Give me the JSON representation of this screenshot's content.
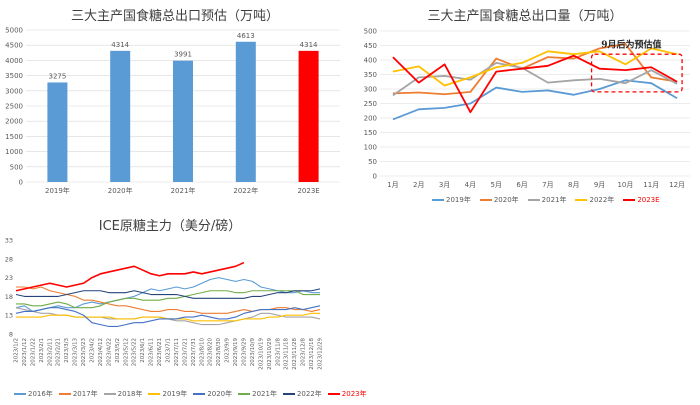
{
  "chart_data": [
    {
      "type": "bar",
      "title": "三大主产国食糖总出口预估（万吨）",
      "categories": [
        "2019年",
        "2020年",
        "2021年",
        "2022年",
        "2023E"
      ],
      "values": [
        3275,
        4314,
        3991,
        4613,
        4314
      ],
      "data_labels": [
        "3275",
        "4314",
        "3991",
        "4613",
        "4314"
      ],
      "ylim": [
        0,
        5000
      ],
      "yticks": [
        "0",
        "500",
        "1000",
        "1500",
        "2000",
        "2500",
        "3000",
        "3500",
        "4000",
        "4500",
        "5000"
      ],
      "colors": [
        "#5b9bd5",
        "#5b9bd5",
        "#5b9bd5",
        "#5b9bd5",
        "#ff0000"
      ],
      "grid": true
    },
    {
      "type": "line",
      "title": "三大主产国食糖总出口量（万吨）",
      "categories": [
        "1月",
        "2月",
        "3月",
        "4月",
        "5月",
        "6月",
        "7月",
        "8月",
        "9月",
        "10月",
        "11月",
        "12月"
      ],
      "ylim": [
        0,
        500
      ],
      "yticks": [
        "0",
        "50",
        "100",
        "150",
        "200",
        "250",
        "300",
        "350",
        "400",
        "450",
        "500"
      ],
      "series": [
        {
          "name": "2019年",
          "color": "#5b9bd5",
          "values": [
            195,
            230,
            235,
            250,
            305,
            290,
            295,
            280,
            300,
            330,
            320,
            268
          ]
        },
        {
          "name": "2020年",
          "color": "#ed7d31",
          "values": [
            285,
            288,
            282,
            290,
            405,
            370,
            410,
            405,
            440,
            455,
            340,
            325
          ]
        },
        {
          "name": "2021年",
          "color": "#a5a5a5",
          "values": [
            278,
            340,
            345,
            332,
            390,
            373,
            322,
            330,
            335,
            320,
            365,
            318
          ]
        },
        {
          "name": "2022年",
          "color": "#ffc000",
          "values": [
            360,
            378,
            312,
            340,
            375,
            390,
            430,
            420,
            430,
            385,
            440,
            420
          ]
        },
        {
          "name": "2023E",
          "color": "#ff0000",
          "values": [
            410,
            322,
            385,
            220,
            360,
            370,
            380,
            415,
            370,
            365,
            375,
            325
          ]
        }
      ],
      "annotation": "9月后为预估值",
      "grid": true,
      "legend": "bottom"
    },
    {
      "type": "line",
      "title": "ICE原糖主力（美分/磅）",
      "ylim": [
        8,
        33
      ],
      "yticks": [
        "8",
        "13",
        "18",
        "23",
        "28",
        "33"
      ],
      "xticks": [
        "2023/1/2",
        "2023/1/12",
        "2023/1/22",
        "2023/2/1",
        "2023/2/11",
        "2023/2/21",
        "2023/3/3",
        "2023/3/13",
        "2023/3/23",
        "2023/4/2",
        "2023/4/12",
        "2023/4/22",
        "2023/5/2",
        "2023/5/12",
        "2023/5/22",
        "2023/6/1",
        "2023/6/11",
        "2023/6/21",
        "2023/7/1",
        "2023/7/11",
        "2023/7/21",
        "2023/7/31",
        "2023/8/10",
        "2023/8/20",
        "2023/8/30",
        "2023/9/9",
        "2023/9/19",
        "2023/9/29",
        "2023/10/9",
        "2023/10/19",
        "2023/10/29",
        "2023/11/8",
        "2023/11/18",
        "2023/11/28",
        "2023/12/8",
        "2023/12/18",
        "2023/12/29"
      ],
      "series": [
        {
          "name": "2016年",
          "color": "#5b9bd5",
          "values": [
            15,
            15.5,
            14,
            14.5,
            15,
            15.5,
            15,
            15,
            16,
            16.5,
            16,
            16.5,
            17,
            17.5,
            18,
            19,
            20,
            19.5,
            20,
            20.5,
            20,
            20.5,
            21.5,
            22.5,
            23,
            22.5,
            22,
            22.5,
            22,
            20.5,
            20,
            19.5,
            19,
            19,
            19.5,
            19,
            19
          ]
        },
        {
          "name": "2017年",
          "color": "#ed7d31",
          "values": [
            20.5,
            20.5,
            20,
            20.5,
            19.5,
            19,
            18.5,
            18,
            17,
            17,
            16.5,
            16,
            15.5,
            15.5,
            15,
            14.5,
            14,
            14,
            14.5,
            14.5,
            14,
            14,
            13.5,
            13.5,
            13.5,
            13.5,
            14,
            14.5,
            14,
            14.5,
            14.5,
            15,
            15,
            14.5,
            14.5,
            14,
            14.5
          ]
        },
        {
          "name": "2018年",
          "color": "#a5a5a5",
          "values": [
            15,
            14.5,
            14,
            13.5,
            13.5,
            13,
            13,
            12.5,
            12.5,
            12.5,
            12.5,
            12,
            12,
            12,
            12,
            12.5,
            12.5,
            12.5,
            12,
            11.5,
            11.5,
            11,
            10.5,
            10.5,
            10.5,
            11,
            11.5,
            12,
            12.5,
            13.5,
            13.5,
            13,
            12.5,
            12.5,
            12.5,
            12.5,
            12
          ]
        },
        {
          "name": "2019年",
          "color": "#ffc000",
          "values": [
            12.5,
            12.5,
            12.5,
            12.5,
            13,
            13,
            13,
            12.5,
            12.5,
            12.5,
            12.5,
            12.5,
            12,
            12,
            12,
            12.5,
            12.5,
            12.5,
            12,
            12,
            12,
            11.5,
            11.5,
            11.5,
            11.5,
            11.5,
            11.5,
            12,
            12,
            12,
            12.5,
            12.5,
            13,
            13,
            13,
            13.5,
            13.5
          ]
        },
        {
          "name": "2020年",
          "color": "#4472c4",
          "values": [
            13.5,
            14,
            14,
            14.5,
            15,
            15,
            14.5,
            14,
            13,
            11,
            10.5,
            10,
            10,
            10.5,
            11,
            11,
            11.5,
            12,
            12,
            12,
            12.5,
            12.5,
            13,
            12.5,
            12,
            12,
            12.5,
            13.5,
            14,
            14.5,
            14.5,
            14.5,
            14.5,
            15,
            14.5,
            15,
            15.5
          ]
        },
        {
          "name": "2021年",
          "color": "#70ad47",
          "values": [
            16,
            16,
            15.5,
            15.5,
            16,
            16.5,
            16,
            15,
            15,
            15,
            15.5,
            16.5,
            17,
            17.5,
            17.5,
            17,
            17,
            17,
            17.5,
            17.5,
            18,
            18.5,
            19,
            19.5,
            19.5,
            19.5,
            19,
            19,
            19.5,
            19.5,
            19.5,
            19.5,
            19.5,
            19.5,
            18.5,
            18.5,
            18.5
          ]
        },
        {
          "name": "2022年",
          "color": "#264478",
          "values": [
            18.5,
            18,
            18,
            18,
            18,
            18,
            18.5,
            19,
            19.5,
            19.5,
            19.5,
            19,
            19,
            19,
            19.5,
            19,
            18.5,
            18.5,
            18.5,
            18.5,
            18,
            17.5,
            17.5,
            17.5,
            17.5,
            17.5,
            17.5,
            17.5,
            18,
            18,
            18.5,
            19,
            19,
            19.5,
            19.5,
            19.5,
            20
          ]
        },
        {
          "name": "2023年",
          "color": "#ff0000",
          "values": [
            19.5,
            20,
            20.5,
            21,
            21.5,
            21,
            20.5,
            21,
            21.5,
            23,
            24,
            24.5,
            25,
            25.5,
            26,
            25,
            24,
            23.5,
            24,
            24,
            24,
            24.5,
            24,
            24.5,
            25,
            25.5,
            26,
            27
          ]
        }
      ],
      "grid": false,
      "legend": "bottom"
    }
  ]
}
